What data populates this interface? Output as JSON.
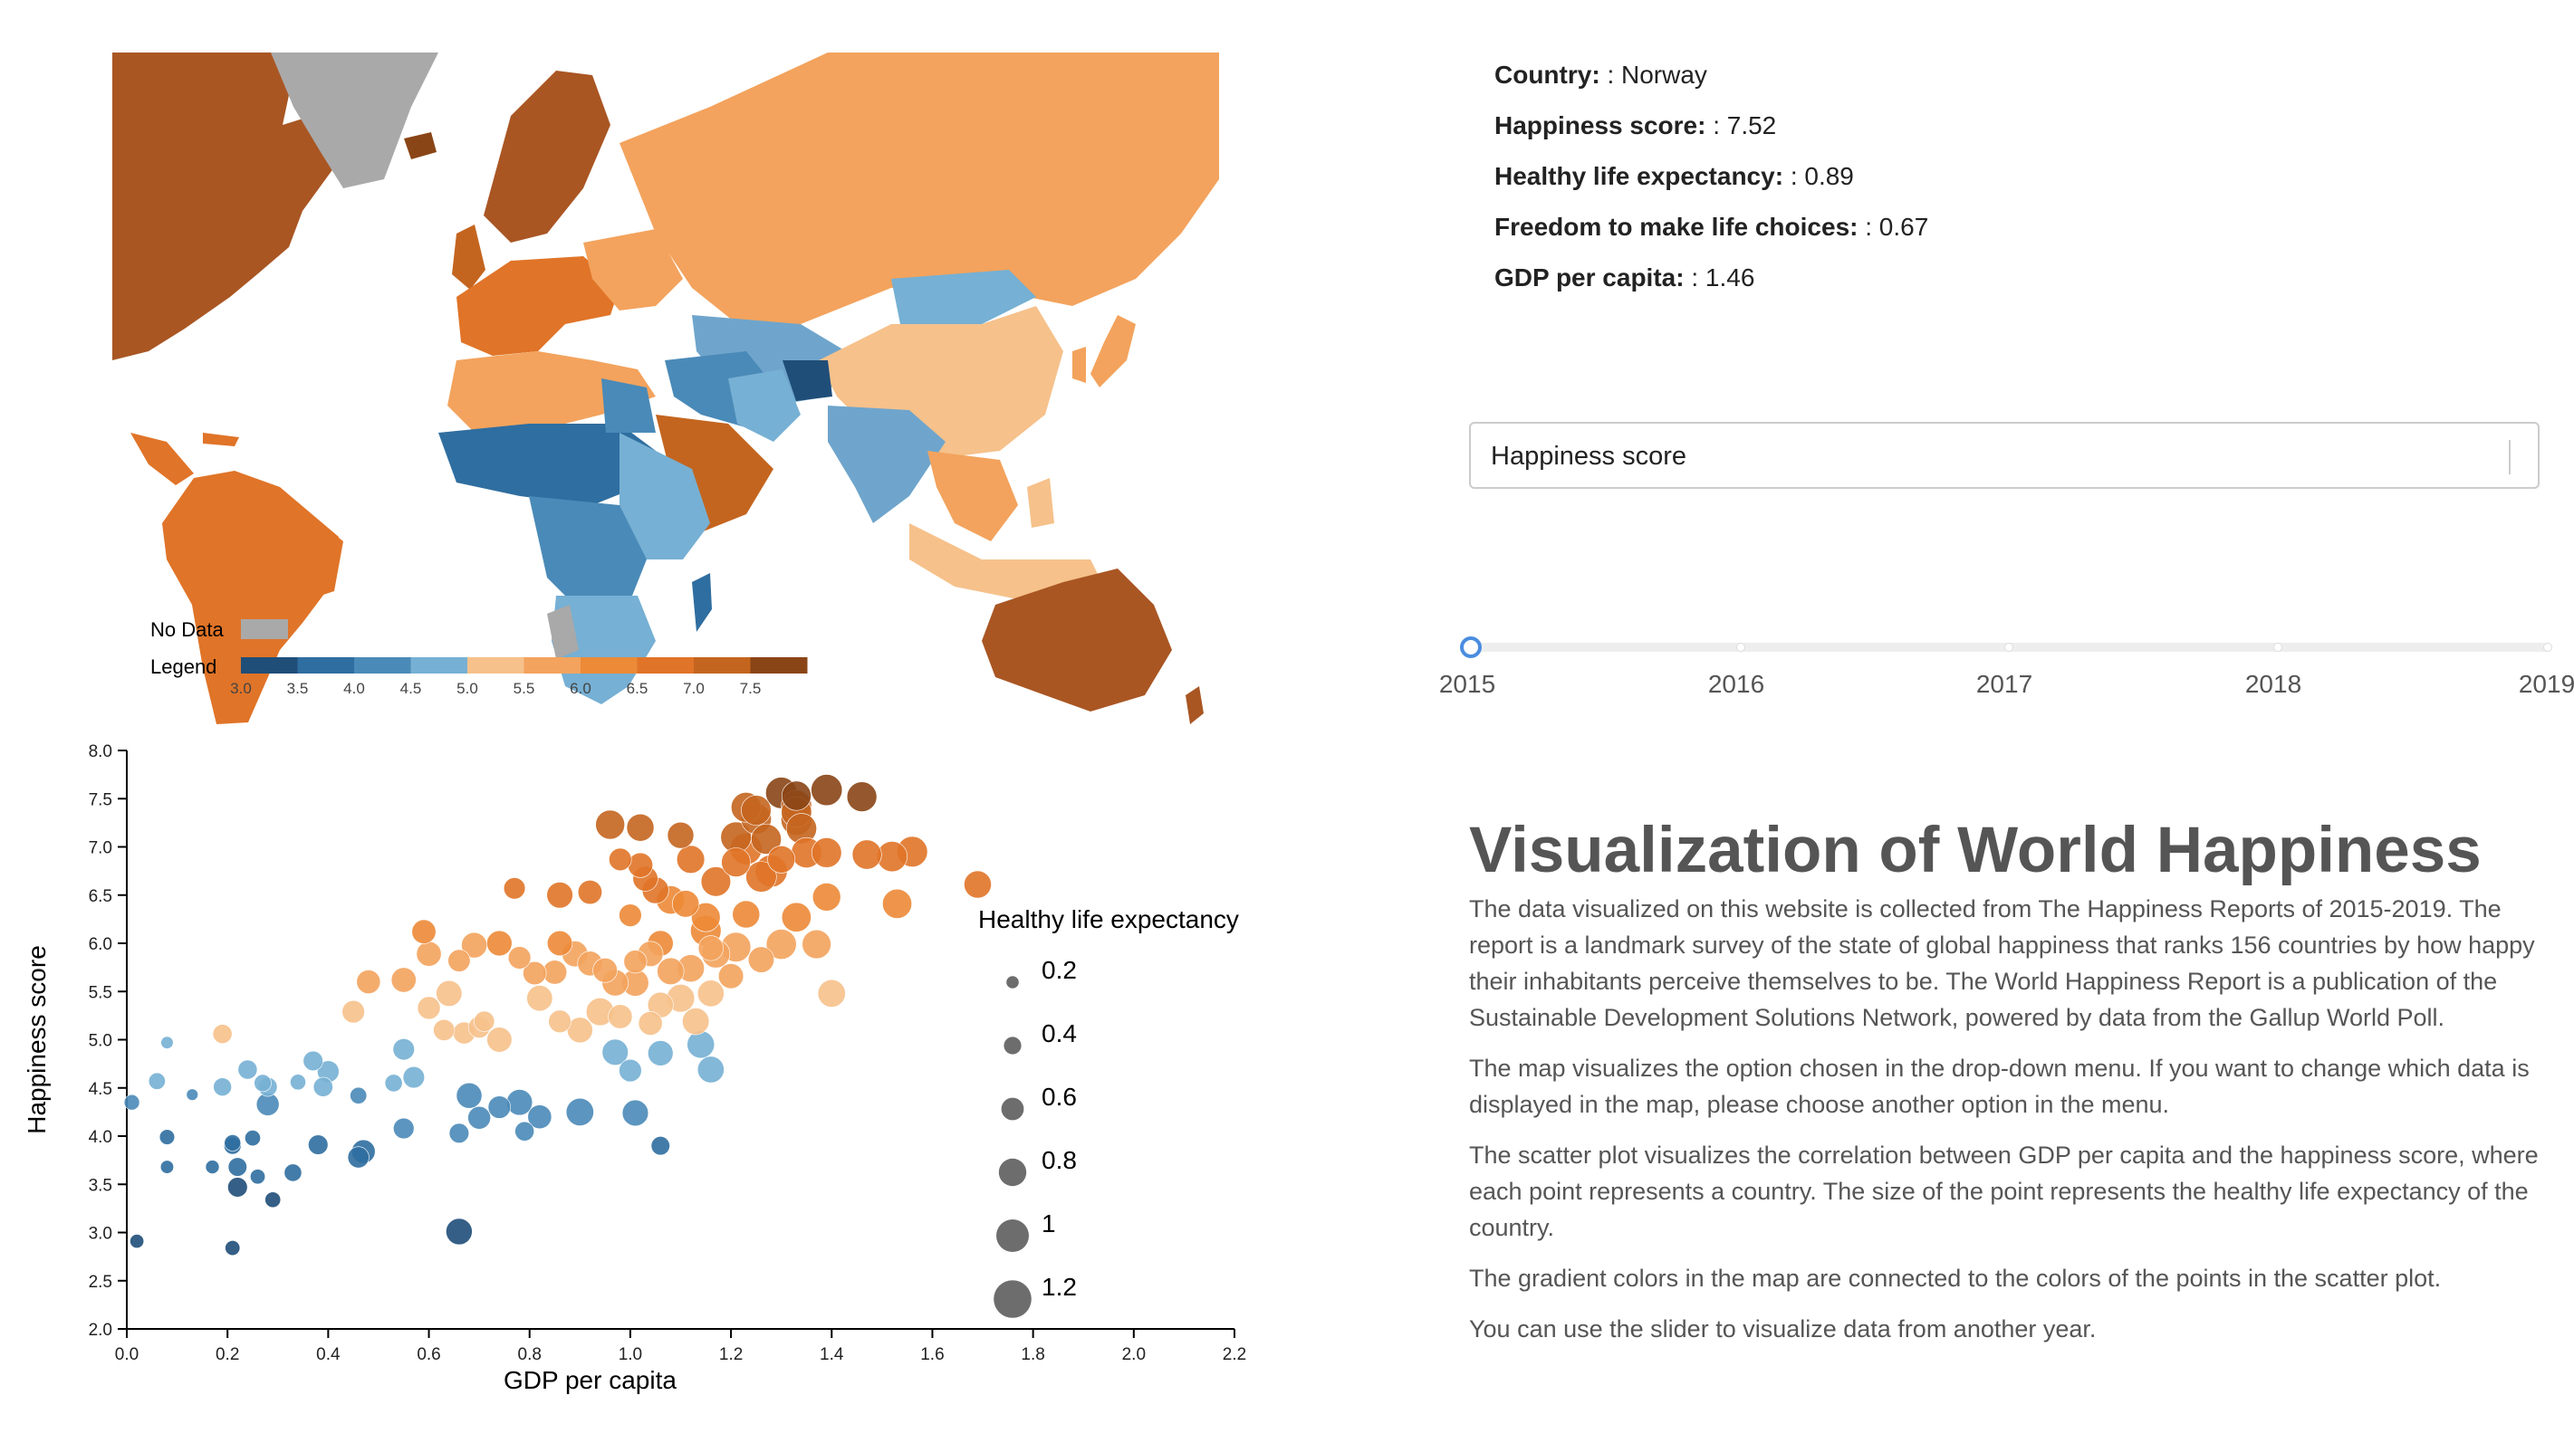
{
  "colors": {
    "no_data": "#a9a9a9",
    "scale": [
      "#1f4e79",
      "#2f6ea0",
      "#4a8ab8",
      "#76b0d4",
      "#f6c18b",
      "#f3a35d",
      "#ec8a37",
      "#e07428",
      "#c4651f",
      "#8a4516"
    ]
  },
  "map": {
    "no_data_label": "No Data",
    "legend_label": "Legend",
    "legend_ticks": [
      "3.0",
      "3.5",
      "4.0",
      "4.5",
      "5.0",
      "5.5",
      "6.0",
      "6.5",
      "7.0",
      "7.5"
    ]
  },
  "info": {
    "rows": [
      {
        "key": "Country:",
        "value": ": Norway"
      },
      {
        "key": "Happiness score:",
        "value": ": 7.52"
      },
      {
        "key": "Healthy life expectancy:",
        "value": ": 0.89"
      },
      {
        "key": "Freedom to make life choices:",
        "value": ": 0.67"
      },
      {
        "key": "GDP per capita:",
        "value": ": 1.46"
      }
    ]
  },
  "dropdown": {
    "selected": "Happiness score"
  },
  "slider": {
    "years": [
      "2015",
      "2016",
      "2017",
      "2018",
      "2019"
    ],
    "selected": "2015"
  },
  "text": {
    "title": "Visualization of World Happiness",
    "paragraphs": [
      "The data visualized on this website is collected from The Happiness Reports of 2015-2019. The report is a landmark survey of the state of global happiness that ranks 156 countries by how happy their inhabitants perceive themselves to be. The World Happiness Report is a publication of the Sustainable Development Solutions Network, powered by data from the Gallup World Poll.",
      "The map visualizes the option chosen in the drop-down menu. If you want to change which data is displayed in the map, please choose another option in the menu.",
      "The scatter plot visualizes the correlation between GDP per capita and the happiness score, where each point represents a country. The size of the point represents the healthy life expectancy of the country.",
      "The gradient colors in the map are connected to the colors of the points in the scatter plot.",
      "You can use the slider to visualize data from another year."
    ]
  },
  "chart_data": {
    "type": "scatter",
    "xlabel": "GDP per capita",
    "ylabel": "Happiness score",
    "xlim": [
      0,
      2.2
    ],
    "ylim": [
      2.0,
      8.0
    ],
    "xticks": [
      "0.0",
      "0.2",
      "0.4",
      "0.6",
      "0.8",
      "1.0",
      "1.2",
      "1.4",
      "1.6",
      "1.8",
      "2.0",
      "2.2"
    ],
    "yticks": [
      "2.0",
      "2.5",
      "3.0",
      "3.5",
      "4.0",
      "4.5",
      "5.0",
      "5.5",
      "6.0",
      "6.5",
      "7.0",
      "7.5",
      "8.0"
    ],
    "size_legend": {
      "title": "Healthy life expectancy",
      "values": [
        "0.2",
        "0.4",
        "0.6",
        "0.8",
        "1",
        "1.2"
      ]
    },
    "points": [
      [
        1.39,
        7.59,
        0.94
      ],
      [
        1.3,
        7.56,
        0.95
      ],
      [
        1.33,
        7.53,
        0.87
      ],
      [
        1.46,
        7.52,
        0.89
      ],
      [
        1.33,
        7.43,
        0.91
      ],
      [
        1.23,
        7.41,
        0.89
      ],
      [
        1.25,
        7.38,
        0.89
      ],
      [
        1.33,
        7.36,
        0.91
      ],
      [
        1.25,
        7.29,
        0.91
      ],
      [
        1.33,
        7.28,
        0.93
      ],
      [
        0.96,
        7.23,
        0.86
      ],
      [
        1.02,
        7.2,
        0.79
      ],
      [
        1.34,
        7.19,
        0.91
      ],
      [
        1.56,
        6.95,
        0.92
      ],
      [
        1.1,
        7.12,
        0.75
      ],
      [
        1.27,
        7.08,
        0.9
      ],
      [
        1.21,
        7.1,
        0.92
      ],
      [
        1.52,
        6.9,
        0.91
      ],
      [
        1.39,
        6.94,
        0.89
      ],
      [
        1.47,
        6.92,
        0.87
      ],
      [
        1.69,
        6.61,
        0.79
      ],
      [
        1.23,
        6.98,
        0.96
      ],
      [
        1.35,
        6.94,
        0.91
      ],
      [
        1.12,
        6.87,
        0.81
      ],
      [
        1.02,
        6.81,
        0.69
      ],
      [
        0.98,
        6.87,
        0.6
      ],
      [
        1.03,
        6.67,
        0.7
      ],
      [
        1.21,
        6.84,
        0.86
      ],
      [
        1.3,
        6.87,
        0.79
      ],
      [
        1.26,
        6.69,
        0.92
      ],
      [
        1.28,
        6.75,
        0.98
      ],
      [
        1.39,
        6.48,
        0.82
      ],
      [
        1.17,
        6.64,
        0.88
      ],
      [
        1.08,
        6.45,
        0.83
      ],
      [
        0.92,
        6.53,
        0.66
      ],
      [
        1.05,
        6.55,
        0.76
      ],
      [
        1.53,
        6.41,
        0.87
      ],
      [
        1.11,
        6.41,
        0.77
      ],
      [
        0.77,
        6.57,
        0.56
      ],
      [
        0.86,
        6.5,
        0.74
      ],
      [
        1.15,
        6.27,
        0.85
      ],
      [
        1.23,
        6.3,
        0.79
      ],
      [
        1.33,
        6.27,
        0.87
      ],
      [
        1.0,
        6.29,
        0.6
      ],
      [
        1.15,
        6.13,
        0.92
      ],
      [
        0.59,
        6.12,
        0.66
      ],
      [
        0.74,
        6.0,
        0.71
      ],
      [
        0.86,
        6.0,
        0.7
      ],
      [
        1.06,
        6.0,
        0.72
      ],
      [
        0.69,
        5.98,
        0.72
      ],
      [
        1.3,
        5.99,
        0.9
      ],
      [
        1.21,
        5.96,
        0.88
      ],
      [
        1.16,
        5.95,
        0.7
      ],
      [
        0.6,
        5.89,
        0.69
      ],
      [
        1.37,
        5.99,
        0.85
      ],
      [
        0.89,
        5.89,
        0.73
      ],
      [
        1.04,
        5.89,
        0.71
      ],
      [
        0.78,
        5.85,
        0.6
      ],
      [
        0.66,
        5.82,
        0.59
      ],
      [
        1.17,
        5.89,
        0.82
      ],
      [
        1.26,
        5.83,
        0.73
      ],
      [
        1.01,
        5.81,
        0.62
      ],
      [
        0.92,
        5.79,
        0.69
      ],
      [
        1.4,
        5.48,
        0.8
      ],
      [
        1.12,
        5.74,
        0.79
      ],
      [
        0.95,
        5.72,
        0.68
      ],
      [
        0.81,
        5.69,
        0.63
      ],
      [
        0.55,
        5.62,
        0.69
      ],
      [
        1.08,
        5.71,
        0.77
      ],
      [
        0.85,
        5.7,
        0.66
      ],
      [
        1.2,
        5.66,
        0.7
      ],
      [
        0.97,
        5.59,
        0.75
      ],
      [
        0.48,
        5.6,
        0.65
      ],
      [
        1.01,
        5.59,
        0.77
      ],
      [
        1.1,
        5.43,
        0.81
      ],
      [
        0.64,
        5.48,
        0.73
      ],
      [
        0.82,
        5.43,
        0.73
      ],
      [
        1.16,
        5.48,
        0.76
      ],
      [
        0.45,
        5.29,
        0.6
      ],
      [
        0.6,
        5.33,
        0.61
      ],
      [
        0.94,
        5.29,
        0.81
      ],
      [
        1.06,
        5.36,
        0.72
      ],
      [
        0.86,
        5.19,
        0.6
      ],
      [
        0.71,
        5.19,
        0.52
      ],
      [
        1.04,
        5.17,
        0.65
      ],
      [
        0.98,
        5.24,
        0.66
      ],
      [
        1.13,
        5.19,
        0.77
      ],
      [
        0.63,
        5.1,
        0.55
      ],
      [
        0.19,
        5.06,
        0.47
      ],
      [
        0.24,
        4.69,
        0.47
      ],
      [
        0.08,
        4.97,
        0.2
      ],
      [
        0.7,
        5.13,
        0.57
      ],
      [
        0.9,
        5.1,
        0.72
      ],
      [
        0.74,
        5.0,
        0.7
      ],
      [
        0.67,
        5.07,
        0.58
      ],
      [
        1.14,
        4.95,
        0.79
      ],
      [
        0.55,
        4.9,
        0.56
      ],
      [
        0.97,
        4.87,
        0.74
      ],
      [
        1.06,
        4.86,
        0.71
      ],
      [
        0.37,
        4.78,
        0.49
      ],
      [
        0.4,
        4.67,
        0.57
      ],
      [
        1.0,
        4.68,
        0.6
      ],
      [
        1.16,
        4.69,
        0.76
      ],
      [
        0.27,
        4.55,
        0.39
      ],
      [
        0.39,
        4.51,
        0.48
      ],
      [
        0.34,
        4.56,
        0.33
      ],
      [
        0.06,
        4.57,
        0.37
      ],
      [
        0.53,
        4.55,
        0.4
      ],
      [
        0.57,
        4.61,
        0.56
      ],
      [
        0.19,
        4.51,
        0.43
      ],
      [
        0.46,
        4.42,
        0.37
      ],
      [
        0.28,
        4.51,
        0.46
      ],
      [
        0.13,
        4.43,
        0.17
      ],
      [
        0.01,
        4.35,
        0.32
      ],
      [
        0.68,
        4.42,
        0.72
      ],
      [
        0.78,
        4.35,
        0.73
      ],
      [
        0.9,
        4.25,
        0.8
      ],
      [
        1.01,
        4.24,
        0.74
      ],
      [
        0.74,
        4.3,
        0.6
      ],
      [
        0.28,
        4.33,
        0.61
      ],
      [
        0.7,
        4.19,
        0.61
      ],
      [
        0.82,
        4.2,
        0.65
      ],
      [
        0.21,
        3.93,
        0.36
      ],
      [
        0.25,
        3.98,
        0.33
      ],
      [
        0.55,
        4.08,
        0.53
      ],
      [
        0.66,
        4.03,
        0.49
      ],
      [
        0.79,
        4.05,
        0.47
      ],
      [
        0.08,
        3.99,
        0.31
      ],
      [
        0.21,
        3.9,
        0.39
      ],
      [
        0.38,
        3.91,
        0.49
      ],
      [
        0.47,
        3.84,
        0.64
      ],
      [
        0.46,
        3.78,
        0.55
      ],
      [
        0.17,
        3.68,
        0.25
      ],
      [
        0.08,
        3.68,
        0.23
      ],
      [
        0.22,
        3.68,
        0.45
      ],
      [
        0.33,
        3.62,
        0.4
      ],
      [
        0.26,
        3.58,
        0.3
      ],
      [
        0.22,
        3.47,
        0.49
      ],
      [
        0.29,
        3.34,
        0.33
      ],
      [
        1.06,
        3.9,
        0.45
      ],
      [
        0.66,
        3.01,
        0.75
      ],
      [
        0.02,
        2.91,
        0.26
      ],
      [
        0.21,
        2.84,
        0.3
      ]
    ]
  }
}
